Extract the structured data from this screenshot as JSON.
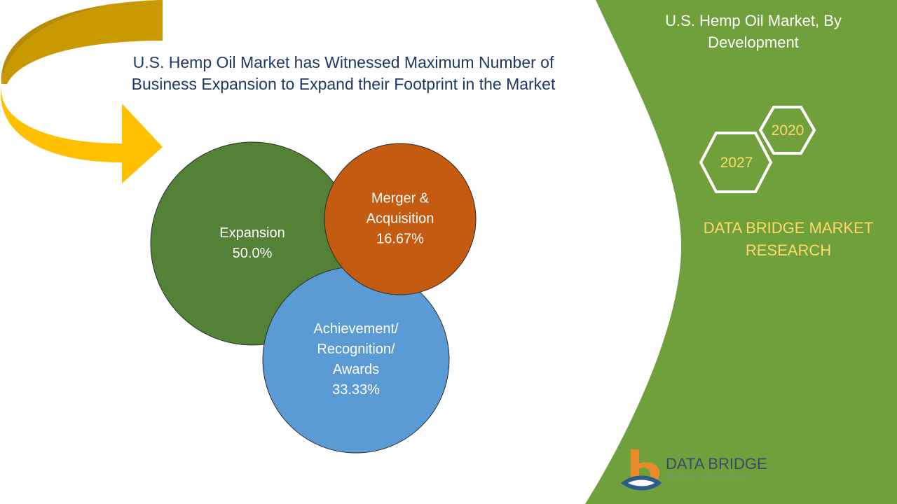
{
  "headline": {
    "line1": "U.S. Hemp Oil Market has Witnessed Maximum Number of",
    "line2": "Business Expansion to Expand their Footprint in the Market"
  },
  "panel": {
    "title_line1": "U.S. Hemp Oil Market, By",
    "title_line2": "Development",
    "year_a": "2020",
    "year_b": "2027",
    "brand_line1": "DATA BRIDGE MARKET",
    "brand_line2": "RESEARCH"
  },
  "logo": {
    "name": "DATA BRIDGE",
    "tagline": "MARKET RESEARCH"
  },
  "colors": {
    "panel_green": "#70a03c",
    "expansion": "#538135",
    "merger": "#c55a11",
    "achievement": "#5b9bd5",
    "arrow_dark": "#c99a00",
    "arrow_light": "#ffc000",
    "accent_text": "#ffd966",
    "headline": "#1f3864"
  },
  "chart_data": {
    "type": "bubble",
    "series": [
      {
        "label_lines": [
          "Expansion"
        ],
        "value": 50.0,
        "value_label": "50.0%",
        "color": "#538135"
      },
      {
        "label_lines": [
          "Merger &",
          "Acquisition"
        ],
        "value": 16.67,
        "value_label": "16.67%",
        "color": "#c55a11"
      },
      {
        "label_lines": [
          "Achievement/",
          "Recognition/",
          "Awards"
        ],
        "value": 33.33,
        "value_label": "33.33%",
        "color": "#5b9bd5"
      }
    ]
  }
}
